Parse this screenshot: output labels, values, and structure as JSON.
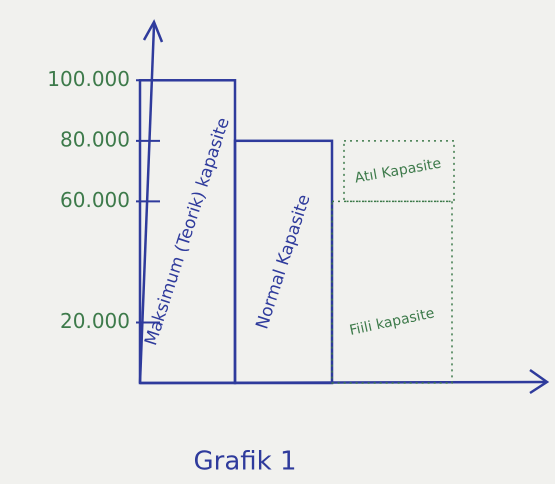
{
  "chart_data": {
    "type": "bar",
    "title": "Grafik 1",
    "categories": [
      "Maksimum (Teorik) kapasite",
      "Normal Kapasite",
      "Fiili kapasite"
    ],
    "series": [
      {
        "color": "#2f3b9c",
        "values": [
          100000,
          80000,
          60000
        ]
      },
      {
        "name": "Atıl Kapasite",
        "color": "#3d7a4a",
        "values": [
          null,
          null,
          20000
        ]
      }
    ],
    "label_colors": [
      "#2f3b9c",
      "#2f3b9c",
      "#3d7a4a"
    ],
    "ylim": [
      0,
      110000
    ],
    "yticks": [
      {
        "value": 20000,
        "label": "20.000"
      },
      {
        "value": 60000,
        "label": "60.000"
      },
      {
        "value": 80000,
        "label": "80.000"
      },
      {
        "value": 100000,
        "label": "100.000"
      }
    ],
    "tick_color": "#3d7a4a"
  }
}
